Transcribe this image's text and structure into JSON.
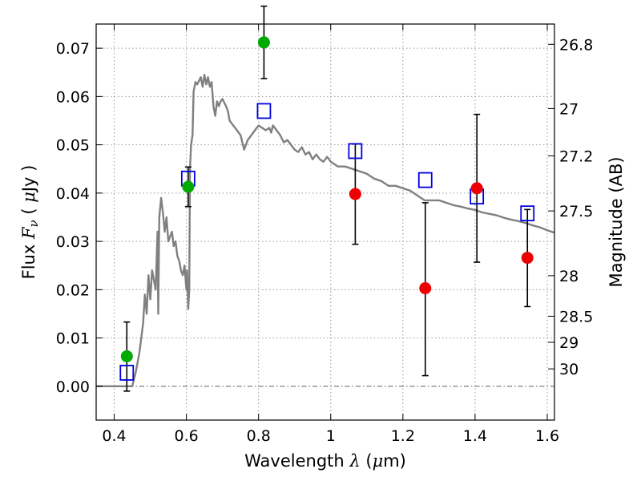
{
  "chart_data": {
    "type": "scatter",
    "xlabel": "Wavelength  λ (μm)",
    "ylabel": "Flux  F_ν  ( μJy )",
    "ylabel_parts": [
      "Flux  ",
      "F",
      "ν",
      "  ( ",
      "μ",
      "Jy )"
    ],
    "xlabel_parts": [
      "Wavelength  ",
      "λ",
      " (",
      "μ",
      "m)"
    ],
    "y2label": "Magnitude (AB)",
    "xlim": [
      0.35,
      1.62
    ],
    "ylim": [
      -0.007,
      0.075
    ],
    "grid": true,
    "x_ticks": [
      {
        "value": 0.4,
        "label": "0.4"
      },
      {
        "value": 0.6,
        "label": "0.6"
      },
      {
        "value": 0.8,
        "label": "0.8"
      },
      {
        "value": 1.0,
        "label": "1"
      },
      {
        "value": 1.2,
        "label": "1.2"
      },
      {
        "value": 1.4,
        "label": "1.4"
      },
      {
        "value": 1.6,
        "label": "1.6"
      }
    ],
    "y_ticks": [
      {
        "value": 0.0,
        "label": "0.00"
      },
      {
        "value": 0.01,
        "label": "0.01"
      },
      {
        "value": 0.02,
        "label": "0.02"
      },
      {
        "value": 0.03,
        "label": "0.03"
      },
      {
        "value": 0.04,
        "label": "0.04"
      },
      {
        "value": 0.05,
        "label": "0.05"
      },
      {
        "value": 0.06,
        "label": "0.06"
      },
      {
        "value": 0.07,
        "label": "0.07"
      }
    ],
    "magnitude_ticks": [
      {
        "flux": 0.0708,
        "label": "26.8"
      },
      {
        "flux": 0.0575,
        "label": "27"
      },
      {
        "flux": 0.0477,
        "label": "27.2"
      },
      {
        "flux": 0.0363,
        "label": "27.5"
      },
      {
        "flux": 0.0229,
        "label": "28"
      },
      {
        "flux": 0.0145,
        "label": "28.5"
      },
      {
        "flux": 0.0091,
        "label": "29"
      },
      {
        "flux": 0.0036,
        "label": "30"
      }
    ],
    "colors": {
      "template": "#808080",
      "green": "#00aa00",
      "red": "#ee0000",
      "model": "#0000dd",
      "errorbar": "#000000",
      "grid": "#999999",
      "zero_line": "#666666"
    },
    "series": [
      {
        "type": "line",
        "color": "#808080",
        "x": [
          0.35,
          0.45,
          0.46,
          0.47,
          0.48,
          0.485,
          0.49,
          0.495,
          0.5,
          0.505,
          0.51,
          0.515,
          0.52,
          0.522,
          0.525,
          0.53,
          0.535,
          0.54,
          0.545,
          0.55,
          0.555,
          0.56,
          0.565,
          0.57,
          0.575,
          0.58,
          0.585,
          0.59,
          0.595,
          0.6,
          0.602,
          0.605,
          0.608,
          0.61,
          0.613,
          0.617,
          0.62,
          0.625,
          0.63,
          0.64,
          0.645,
          0.65,
          0.655,
          0.66,
          0.665,
          0.67,
          0.675,
          0.68,
          0.685,
          0.69,
          0.695,
          0.7,
          0.71,
          0.715,
          0.72,
          0.73,
          0.74,
          0.75,
          0.76,
          0.77,
          0.78,
          0.79,
          0.8,
          0.81,
          0.82,
          0.83,
          0.835,
          0.84,
          0.85,
          0.86,
          0.87,
          0.88,
          0.89,
          0.9,
          0.91,
          0.92,
          0.93,
          0.94,
          0.95,
          0.96,
          0.97,
          0.98,
          0.99,
          1.0,
          1.02,
          1.04,
          1.06,
          1.08,
          1.1,
          1.12,
          1.14,
          1.16,
          1.18,
          1.2,
          1.22,
          1.24,
          1.26,
          1.28,
          1.3,
          1.32,
          1.34,
          1.36,
          1.38,
          1.4,
          1.42,
          1.44,
          1.46,
          1.48,
          1.5,
          1.52,
          1.54,
          1.56,
          1.58,
          1.6,
          1.62
        ],
        "y": [
          0.0,
          0.0,
          0.003,
          0.007,
          0.013,
          0.019,
          0.015,
          0.023,
          0.018,
          0.024,
          0.022,
          0.02,
          0.032,
          0.015,
          0.035,
          0.039,
          0.036,
          0.032,
          0.035,
          0.03,
          0.031,
          0.032,
          0.029,
          0.03,
          0.027,
          0.026,
          0.024,
          0.023,
          0.025,
          0.02,
          0.024,
          0.016,
          0.02,
          0.045,
          0.05,
          0.052,
          0.061,
          0.063,
          0.0625,
          0.064,
          0.062,
          0.0645,
          0.0625,
          0.064,
          0.062,
          0.063,
          0.058,
          0.056,
          0.059,
          0.058,
          0.059,
          0.0595,
          0.058,
          0.057,
          0.055,
          0.054,
          0.053,
          0.052,
          0.049,
          0.051,
          0.052,
          0.053,
          0.054,
          0.0535,
          0.053,
          0.0535,
          0.0525,
          0.054,
          0.053,
          0.052,
          0.0505,
          0.051,
          0.05,
          0.049,
          0.0485,
          0.0495,
          0.048,
          0.0485,
          0.047,
          0.048,
          0.047,
          0.0465,
          0.0475,
          0.0465,
          0.0455,
          0.0455,
          0.045,
          0.0445,
          0.044,
          0.043,
          0.0425,
          0.0415,
          0.0415,
          0.041,
          0.0405,
          0.0395,
          0.0385,
          0.0385,
          0.0385,
          0.038,
          0.0375,
          0.0372,
          0.0368,
          0.0365,
          0.036,
          0.0357,
          0.0354,
          0.0349,
          0.0345,
          0.0342,
          0.0338,
          0.0333,
          0.0329,
          0.0323,
          0.0318
        ]
      },
      {
        "type": "errorbar",
        "color": "#00aa00",
        "x": [
          0.435,
          0.605,
          0.815
        ],
        "y": [
          0.0062,
          0.0413,
          0.0712
        ],
        "yerr": [
          [
            0.0072,
            0.0041,
            0.0075
          ],
          [
            0.0071,
            0.0041,
            0.0075
          ]
        ]
      },
      {
        "type": "errorbar",
        "color": "#ee0000",
        "x": [
          1.068,
          1.262,
          1.405,
          1.545
        ],
        "y": [
          0.0398,
          0.0203,
          0.041,
          0.0266
        ],
        "yerr": [
          [
            0.0104,
            0.0181,
            0.0153,
            0.0101
          ],
          [
            0.0104,
            0.0177,
            0.0153,
            0.01
          ]
        ]
      },
      {
        "type": "scatter",
        "marker": "open-square",
        "color": "#0000dd",
        "x": [
          0.435,
          0.605,
          0.815,
          1.068,
          1.262,
          1.405,
          1.545
        ],
        "y": [
          0.0028,
          0.043,
          0.057,
          0.0487,
          0.0427,
          0.0393,
          0.0358
        ]
      }
    ]
  }
}
